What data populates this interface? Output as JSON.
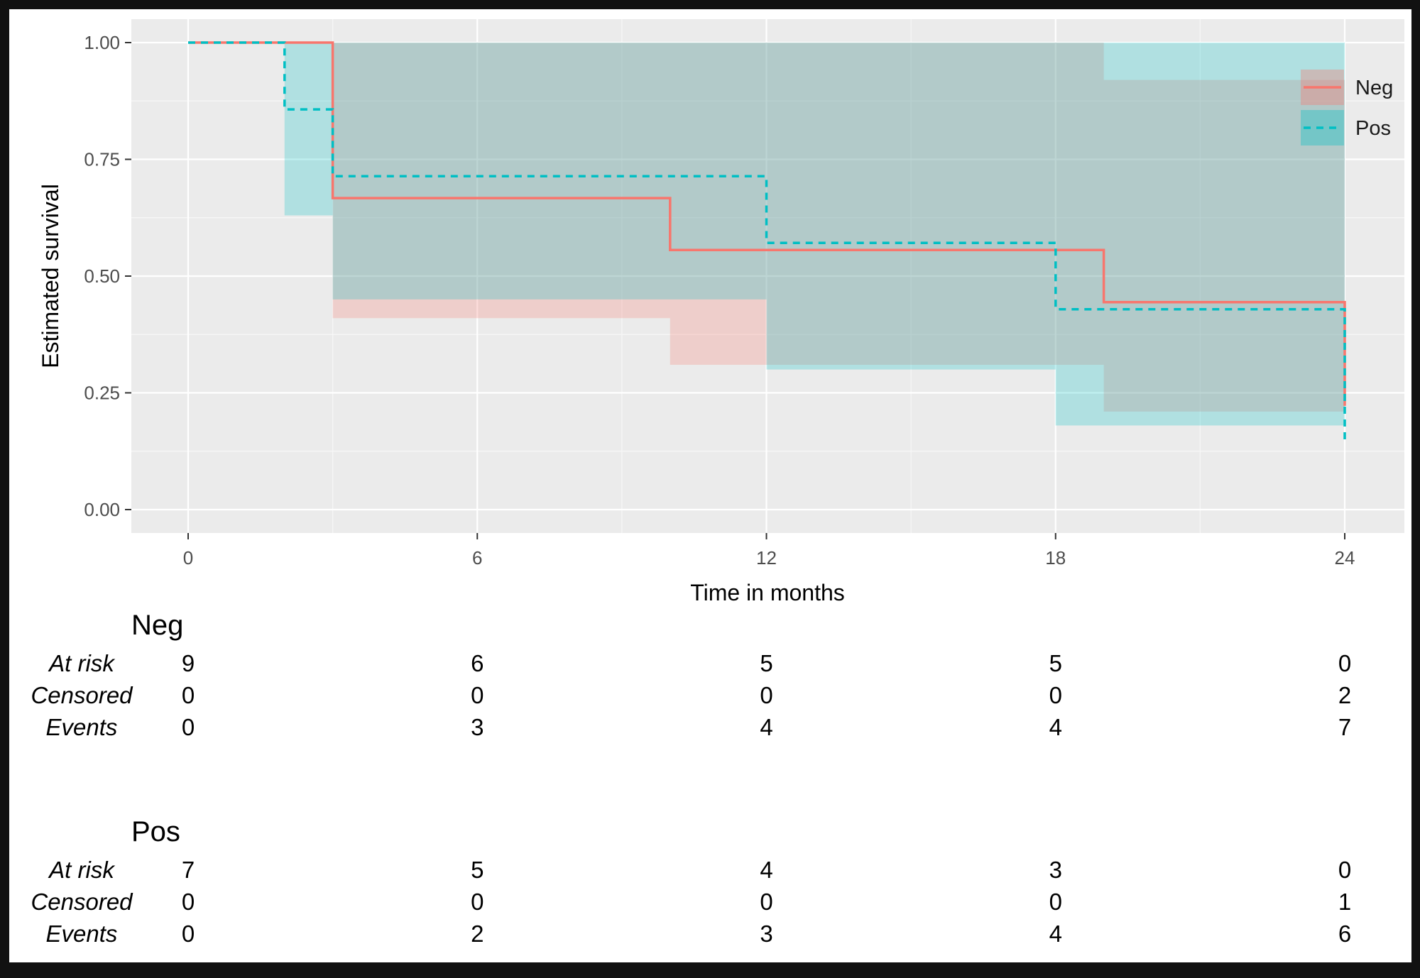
{
  "figure": {
    "y_axis": {
      "title": "Estimated survival",
      "tick_labels": [
        "1.00",
        "0.75",
        "0.50",
        "0.25",
        "0.00"
      ],
      "tick_values": [
        1.0,
        0.75,
        0.5,
        0.25,
        0.0
      ],
      "minor_values": [
        0.875,
        0.625,
        0.375,
        0.125
      ]
    },
    "x_axis": {
      "title": "Time in months",
      "tick_labels": [
        "0",
        "6",
        "12",
        "18",
        "24"
      ],
      "tick_values": [
        0,
        6,
        12,
        18,
        24
      ],
      "minor_values": [
        3,
        9,
        15,
        21
      ]
    },
    "legend": {
      "items": [
        {
          "label": "Neg",
          "color": "#f8766d",
          "linetype": "solid"
        },
        {
          "label": "Pos",
          "color": "#00bfc4",
          "linetype": "dashed"
        }
      ]
    }
  },
  "chart_data": {
    "type": "line",
    "subtype": "kaplan-meier-step",
    "title": "",
    "xlabel": "Time in months",
    "ylabel": "Estimated survival",
    "xlim": [
      0,
      24
    ],
    "ylim": [
      0.0,
      1.0
    ],
    "grid": "on",
    "legend_position": "inside-top-right",
    "series": [
      {
        "name": "Neg",
        "color": "#f8766d",
        "linetype": "solid",
        "steps": [
          [
            0,
            1.0
          ],
          [
            3,
            1.0
          ],
          [
            3,
            0.667
          ],
          [
            10,
            0.667
          ],
          [
            10,
            0.556
          ],
          [
            19,
            0.556
          ],
          [
            19,
            0.444
          ],
          [
            24,
            0.444
          ],
          [
            24,
            0.222
          ]
        ],
        "ci_segments": [
          {
            "t0": 3,
            "t1": 10,
            "lower": 0.41,
            "upper": 1.0
          },
          {
            "t0": 10,
            "t1": 19,
            "lower": 0.31,
            "upper": 1.0
          },
          {
            "t0": 19,
            "t1": 24,
            "lower": 0.21,
            "upper": 0.92
          }
        ]
      },
      {
        "name": "Pos",
        "color": "#00bfc4",
        "linetype": "dashed",
        "steps": [
          [
            0,
            1.0
          ],
          [
            2,
            1.0
          ],
          [
            2,
            0.857
          ],
          [
            3,
            0.857
          ],
          [
            3,
            0.714
          ],
          [
            12,
            0.714
          ],
          [
            12,
            0.571
          ],
          [
            18,
            0.571
          ],
          [
            18,
            0.429
          ],
          [
            24,
            0.429
          ],
          [
            24,
            0.143
          ]
        ],
        "ci_segments": [
          {
            "t0": 2,
            "t1": 3,
            "lower": 0.63,
            "upper": 1.0
          },
          {
            "t0": 3,
            "t1": 12,
            "lower": 0.45,
            "upper": 1.0
          },
          {
            "t0": 12,
            "t1": 18,
            "lower": 0.3,
            "upper": 1.0
          },
          {
            "t0": 18,
            "t1": 24,
            "lower": 0.18,
            "upper": 1.0
          }
        ]
      }
    ]
  },
  "risk_table": {
    "time_points": [
      0,
      6,
      12,
      18,
      24
    ],
    "groups": [
      {
        "name": "Neg",
        "rows": [
          {
            "label": "At risk",
            "values": [
              "9",
              "6",
              "5",
              "5",
              "0"
            ]
          },
          {
            "label": "Censored",
            "values": [
              "0",
              "0",
              "0",
              "0",
              "2"
            ]
          },
          {
            "label": "Events",
            "values": [
              "0",
              "3",
              "4",
              "4",
              "7"
            ]
          }
        ]
      },
      {
        "name": "Pos",
        "rows": [
          {
            "label": "At risk",
            "values": [
              "7",
              "5",
              "4",
              "3",
              "0"
            ]
          },
          {
            "label": "Censored",
            "values": [
              "0",
              "0",
              "0",
              "0",
              "1"
            ]
          },
          {
            "label": "Events",
            "values": [
              "0",
              "2",
              "3",
              "4",
              "6"
            ]
          }
        ]
      }
    ]
  },
  "colors": {
    "panel_bg": "#ebebeb",
    "grid_major": "#ffffff",
    "grid_minor": "#f7f7f7",
    "neg_line": "#f8766d",
    "pos_line": "#00bfc4",
    "ribbon_alpha": 0.25,
    "axis_text": "#4d4d4d",
    "title_text": "#000000",
    "frame": "#111111"
  }
}
